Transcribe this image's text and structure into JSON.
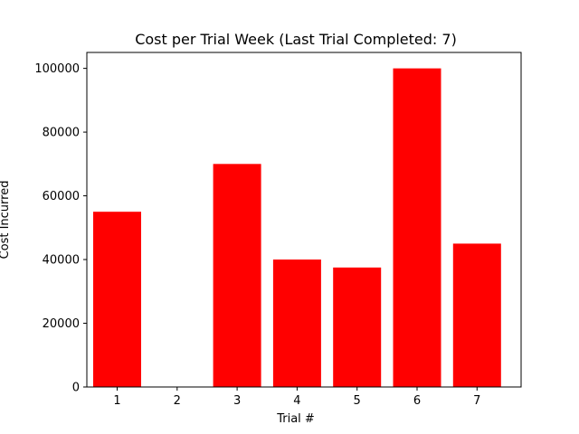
{
  "chart_data": {
    "type": "bar",
    "title": "Cost per Trial Week (Last Trial Completed: 7)",
    "xlabel": "Trial #",
    "ylabel": "Cost Incurred",
    "categories": [
      "1",
      "2",
      "3",
      "4",
      "5",
      "6",
      "7"
    ],
    "values": [
      55000,
      0,
      70000,
      40000,
      37500,
      100000,
      45000
    ],
    "ylim": [
      0,
      105000
    ],
    "yticks": [
      0,
      20000,
      40000,
      60000,
      80000,
      100000
    ],
    "yticklabels": [
      "0",
      "20000",
      "40000",
      "60000",
      "80000",
      "100000"
    ],
    "bar_color": "#ff0000",
    "grid": false
  }
}
